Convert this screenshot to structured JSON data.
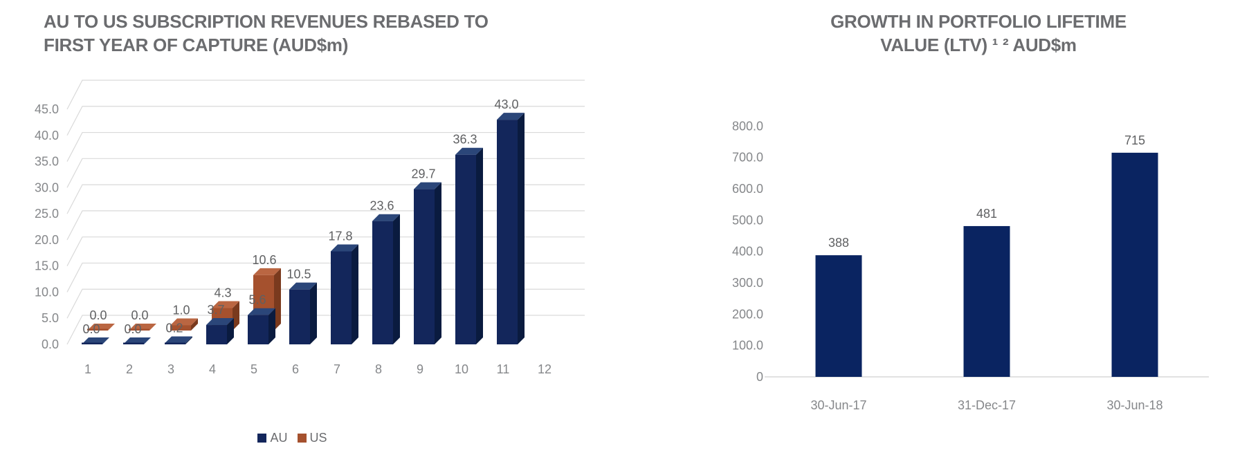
{
  "page": {
    "background": "#ffffff",
    "title_color": "#6B6C6F",
    "tick_color": "#85878A",
    "value_label_color": "#5F6062",
    "grid_color": "#D9D9D9"
  },
  "chart_data": [
    {
      "type": "bar",
      "style": "3d-clustered-column",
      "title": "AU TO US SUBSCRIPTION REVENUES REBASED TO FIRST YEAR OF CAPTURE (AUD$m)",
      "title_lines": [
        "AU TO US SUBSCRIPTION REVENUES REBASED TO",
        "FIRST YEAR OF CAPTURE (AUD$m)"
      ],
      "xlabel": "",
      "ylabel": "",
      "categories": [
        "1",
        "2",
        "3",
        "4",
        "5",
        "6",
        "7",
        "8",
        "9",
        "10",
        "11",
        "12"
      ],
      "series": [
        {
          "name": "AU",
          "color": "#13265B",
          "color_top": "#2B4679",
          "color_side": "#0A1B3F",
          "values": [
            0.0,
            0.0,
            0.2,
            3.7,
            5.6,
            10.5,
            17.8,
            23.6,
            29.7,
            36.3,
            43.0,
            null
          ],
          "data_labels": [
            "0.0",
            "0.0",
            "0.2",
            "3.7",
            "5.6",
            "10.5",
            "17.8",
            "23.6",
            "29.7",
            "36.3",
            "43.0",
            ""
          ]
        },
        {
          "name": "US",
          "color": "#A5512E",
          "color_top": "#BA6642",
          "color_side": "#7A3A1E",
          "values": [
            0.0,
            0.0,
            1.0,
            4.3,
            10.6,
            null,
            null,
            null,
            null,
            null,
            null,
            null
          ],
          "data_labels": [
            "0.0",
            "0.0",
            "1.0",
            "4.3",
            "10.6",
            "",
            "",
            "",
            "",
            "",
            "",
            ""
          ]
        }
      ],
      "ylim": [
        0,
        45
      ],
      "ytick_values": [
        0,
        5,
        10,
        15,
        20,
        25,
        30,
        35,
        40,
        45
      ],
      "ytick_labels": [
        "0.0",
        "5.0",
        "10.0",
        "15.0",
        "20.0",
        "25.0",
        "30.0",
        "35.0",
        "40.0",
        "45.0"
      ],
      "grid": true,
      "legend_position": "bottom"
    },
    {
      "type": "bar",
      "style": "flat-column",
      "title": "GROWTH IN PORTFOLIO LIFETIME VALUE (LTV) ¹ ² AUD$m",
      "title_lines": [
        "GROWTH IN PORTFOLIO LIFETIME",
        "VALUE (LTV) ¹ ² AUD$m"
      ],
      "xlabel": "",
      "ylabel": "",
      "categories": [
        "30-Jun-17",
        "31-Dec-17",
        "30-Jun-18"
      ],
      "values": [
        388,
        481,
        715
      ],
      "data_labels": [
        "388",
        "481",
        "715"
      ],
      "bar_color": "#0A2461",
      "ylim": [
        0,
        800
      ],
      "ytick_values": [
        0,
        100,
        200,
        300,
        400,
        500,
        600,
        700,
        800
      ],
      "ytick_labels": [
        "0",
        "100.0",
        "200.0",
        "300.0",
        "400.0",
        "500.0",
        "600.0",
        "700.0",
        "800.0"
      ],
      "grid": false,
      "legend_position": "none"
    }
  ]
}
